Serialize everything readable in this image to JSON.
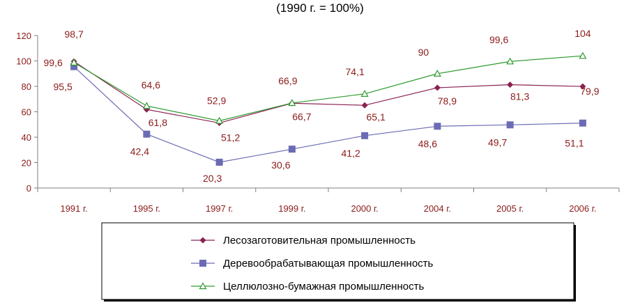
{
  "chart_data": {
    "type": "line",
    "subtitle": "(1990 г. = 100%)",
    "categories": [
      "1991 г.",
      "1995 г.",
      "1997 г.",
      "1999 г.",
      "2000 г.",
      "2004 г.",
      "2005 г.",
      "2006 г."
    ],
    "ylim": [
      0,
      120
    ],
    "yticks": [
      "0",
      "20",
      "40",
      "60",
      "80",
      "100",
      "120"
    ],
    "grid": false,
    "legend_position": "bottom",
    "series": [
      {
        "name": "Лесозаготовительная промышленность",
        "color": "#8b2252",
        "marker": "diamond",
        "values": [
          99.6,
          61.8,
          51.2,
          66.7,
          65.1,
          78.9,
          81.3,
          79.9
        ],
        "labels": [
          "99,6",
          "61,8",
          "51,2",
          "66,7",
          "65,1",
          "78,9",
          "81,3",
          "79,9"
        ]
      },
      {
        "name": "Деревообрабатывающая промышленность",
        "color": "#6b6bb5",
        "marker": "square",
        "values": [
          95.5,
          42.4,
          20.3,
          30.6,
          41.2,
          48.6,
          49.7,
          51.1
        ],
        "labels": [
          "95,5",
          "42,4",
          "20,3",
          "30,6",
          "41,2",
          "48,6",
          "49,7",
          "51,1"
        ]
      },
      {
        "name": "Целлюлозно-бумажная промышленность",
        "color": "#2e9a2e",
        "marker": "triangle",
        "values": [
          98.7,
          64.6,
          52.9,
          66.9,
          74.1,
          90,
          99.6,
          104
        ],
        "labels": [
          "98,7",
          "64,6",
          "52,9",
          "66,9",
          "74,1",
          "90",
          "99,6",
          "104"
        ]
      }
    ]
  }
}
